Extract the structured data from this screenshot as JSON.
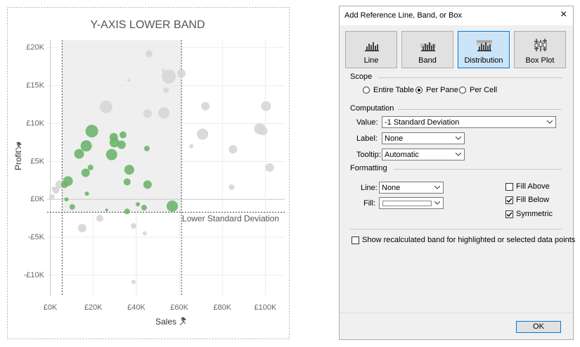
{
  "chart_data": {
    "type": "scatter",
    "title": "Y-AXIS LOWER BAND",
    "x_label": "Sales",
    "y_label": "Profit",
    "xlim": [
      -1500,
      109000
    ],
    "ylim": [
      -12700,
      21000
    ],
    "xticks": [
      {
        "value": 0,
        "label": "£0K"
      },
      {
        "value": 20000,
        "label": "£20K"
      },
      {
        "value": 40000,
        "label": "£40K"
      },
      {
        "value": 60000,
        "label": "£60K"
      },
      {
        "value": 80000,
        "label": "£80K"
      },
      {
        "value": 100000,
        "label": "£100K"
      }
    ],
    "yticks": [
      {
        "value": -10000,
        "label": "-£10K"
      },
      {
        "value": -5000,
        "label": "-£5K"
      },
      {
        "value": 0,
        "label": "£0K"
      },
      {
        "value": 5000,
        "label": "£5K"
      },
      {
        "value": 10000,
        "label": "£10K"
      },
      {
        "value": 15000,
        "label": "£15K"
      },
      {
        "value": 20000,
        "label": "£20K"
      }
    ],
    "grid": true,
    "x_band": [
      5500,
      61000
    ],
    "lower_line": {
      "value": -1700,
      "label": "Lower Standard Deviation"
    },
    "series": [
      {
        "color": "#d6d6d6",
        "x": [
          55100,
          61000,
          25900,
          45900,
          45200,
          52800,
          53800,
          72100,
          70800,
          84900,
          65600,
          100300,
          97400,
          99000,
          102000,
          84300,
          14800,
          23000,
          38700,
          43900,
          38700,
          700,
          2600,
          4300,
          1600,
          36400,
          52500
        ],
        "values": [
          16200,
          16600,
          12200,
          19200,
          11300,
          11400,
          14400,
          12300,
          8600,
          6600,
          7000,
          12300,
          9300,
          9000,
          4200,
          1600,
          -3800,
          -2500,
          -3500,
          -4500,
          -10900,
          300,
          1200,
          1950,
          1400,
          15700,
          17000
        ],
        "sizes": [
          10,
          6,
          9,
          5,
          6,
          8,
          4,
          6,
          8,
          6,
          3,
          7,
          8,
          6,
          6,
          4,
          6,
          5,
          4,
          3,
          3,
          4,
          5,
          6,
          3,
          2,
          2
        ]
      },
      {
        "color": "#6db46d",
        "x": [
          19300,
          16700,
          13400,
          8200,
          6600,
          16400,
          18700,
          17000,
          28500,
          29500,
          29800,
          33100,
          33800,
          36700,
          35700,
          45200,
          44900,
          56700,
          35700,
          40700,
          43600,
          10200,
          7500,
          26200
        ],
        "values": [
          9000,
          7050,
          6000,
          2400,
          1950,
          3500,
          4200,
          750,
          5900,
          8200,
          7500,
          7200,
          8500,
          3900,
          2300,
          1950,
          6700,
          -900,
          -1600,
          -650,
          -1100,
          -1000,
          0,
          -1400
        ],
        "sizes": [
          9,
          8,
          7,
          7,
          5,
          6,
          4,
          3,
          8,
          6,
          7,
          6,
          5,
          7,
          5,
          6,
          4,
          8,
          4,
          3,
          4,
          4,
          3,
          2
        ]
      }
    ]
  },
  "dialog": {
    "title": "Add Reference Line, Band, or Box",
    "close": "×",
    "tabs": [
      {
        "label": "Line",
        "selected": false
      },
      {
        "label": "Band",
        "selected": false
      },
      {
        "label": "Distribution",
        "selected": true
      },
      {
        "label": "Box Plot",
        "selected": false
      }
    ],
    "scope": {
      "label": "Scope",
      "options": [
        "Entire Table",
        "Per Pane",
        "Per Cell"
      ],
      "selected": 1
    },
    "computation": {
      "label": "Computation",
      "fields": [
        {
          "label": "Value:",
          "value": "-1 Standard Deviation"
        },
        {
          "label": "Label:",
          "value": "None"
        },
        {
          "label": "Tooltip:",
          "value": "Automatic"
        }
      ]
    },
    "formatting": {
      "label": "Formatting",
      "line_label": "Line:",
      "line_value": "None",
      "fill_label": "Fill:",
      "checkboxes": [
        {
          "label": "Fill Above",
          "checked": false
        },
        {
          "label": "Fill Below",
          "checked": true
        },
        {
          "label": "Symmetric",
          "checked": true
        }
      ]
    },
    "recalc": {
      "label": "Show recalculated band for highlighted or selected data points",
      "checked": false
    },
    "ok": "OK"
  }
}
